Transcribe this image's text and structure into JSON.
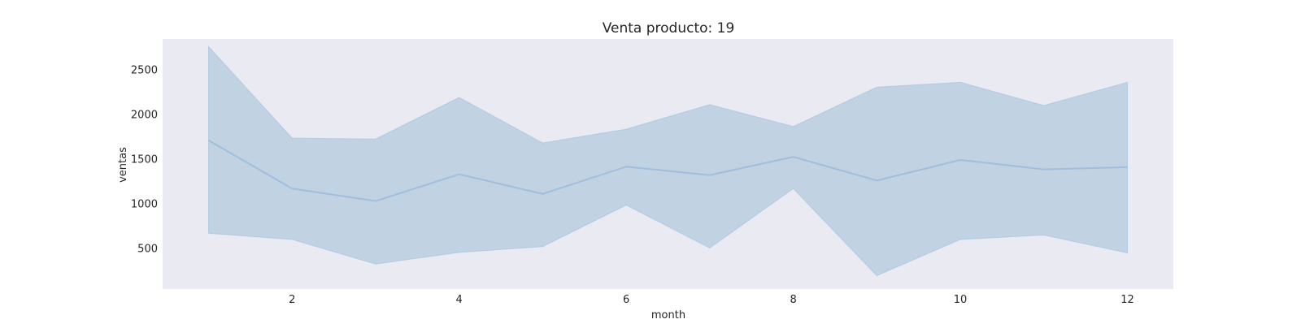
{
  "chart_data": {
    "type": "line",
    "title": "Venta producto: 19",
    "xlabel": "month",
    "ylabel": "ventas",
    "xlim": [
      0.45,
      12.55
    ],
    "ylim": [
      40,
      2840
    ],
    "xticks": [
      2,
      4,
      6,
      8,
      10,
      12
    ],
    "yticks": [
      500,
      1000,
      1500,
      2000,
      2500
    ],
    "grid": false,
    "colors": {
      "line": "#9fbfdc",
      "band": "#c1d2e3",
      "plot_bg": "#eaeaf2"
    },
    "series": [
      {
        "x": [
          1,
          2,
          3,
          4,
          5,
          6,
          7,
          8,
          9,
          10,
          11,
          12
        ],
        "y": [
          1705,
          1165,
          1025,
          1325,
          1105,
          1410,
          1315,
          1520,
          1255,
          1485,
          1380,
          1405
        ],
        "lower": [
          665,
          595,
          320,
          450,
          515,
          980,
          500,
          1165,
          190,
          595,
          645,
          445
        ],
        "upper": [
          2755,
          1730,
          1720,
          2185,
          1675,
          1830,
          2105,
          1860,
          2300,
          2355,
          2095,
          2355
        ]
      }
    ]
  }
}
